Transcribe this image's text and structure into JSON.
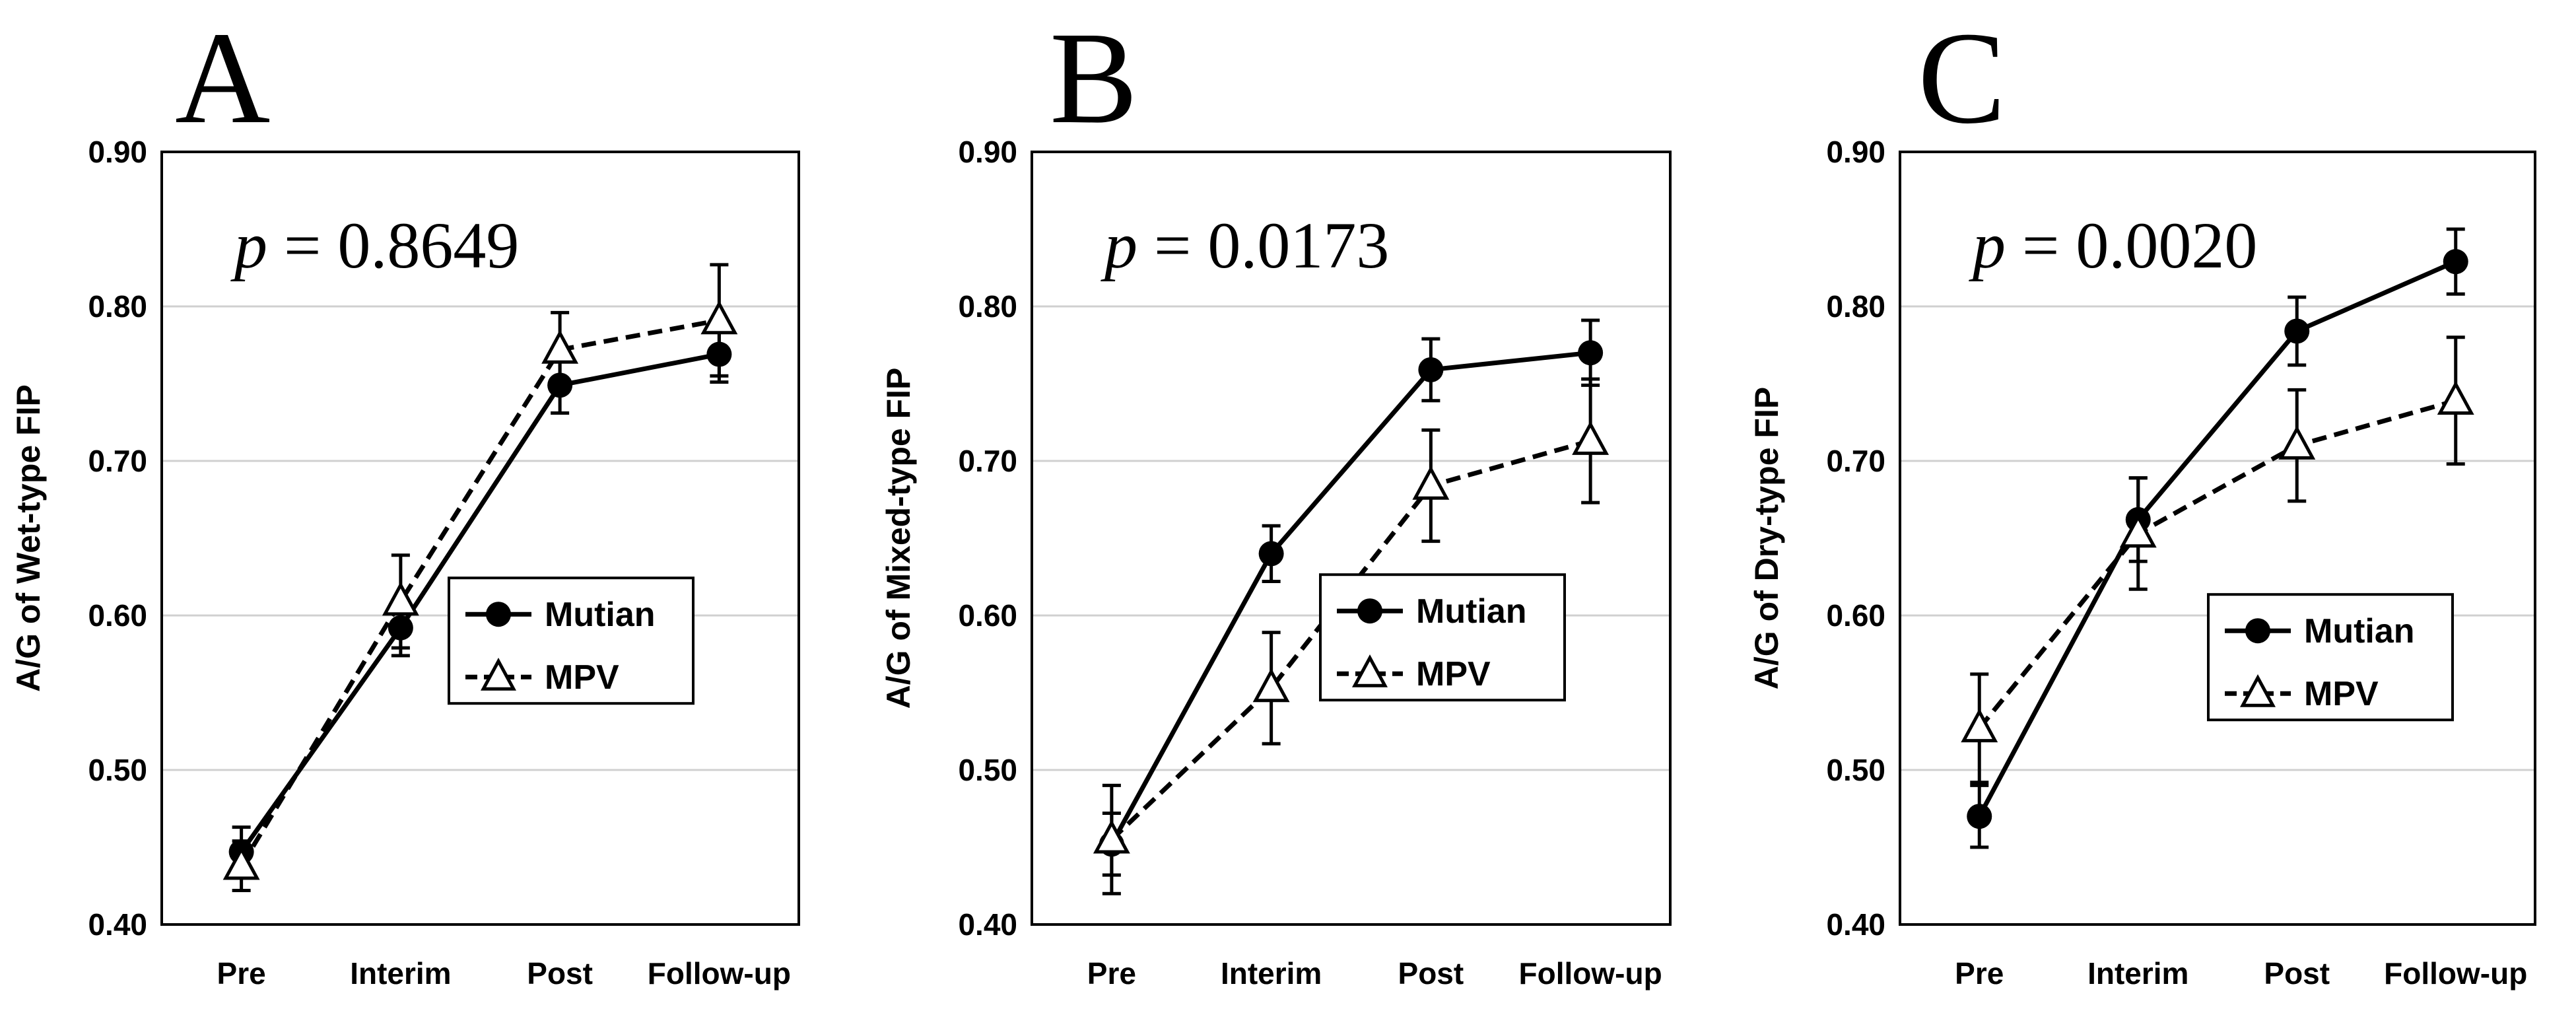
{
  "chart_data": [
    {
      "type": "line",
      "panel": "A",
      "annotation_symbol": "p",
      "annotation_value": "= 0.8649",
      "ylabel": "A/G of Wet-type FIP",
      "xlabel": "",
      "categories": [
        "Pre",
        "Interim",
        "Post",
        "Follow-up"
      ],
      "ylim": [
        0.4,
        0.9
      ],
      "yticks": [
        "0.40",
        "0.50",
        "0.60",
        "0.70",
        "0.80",
        "0.90"
      ],
      "grid": true,
      "legend_position": "bottom-right",
      "series": [
        {
          "name": "Mutian",
          "marker": "filled-circle",
          "line": "solid",
          "values": [
            0.447,
            0.592,
            0.749,
            0.769
          ],
          "errors": [
            0.016,
            0.018,
            0.018,
            0.018
          ]
        },
        {
          "name": "MPV",
          "marker": "open-triangle",
          "line": "dashed",
          "values": [
            0.438,
            0.609,
            0.772,
            0.791
          ],
          "errors": [
            0.016,
            0.03,
            0.024,
            0.036
          ]
        }
      ]
    },
    {
      "type": "line",
      "panel": "B",
      "annotation_symbol": "p",
      "annotation_value": "= 0.0173",
      "ylabel": "A/G of Mixed-type FIP",
      "xlabel": "",
      "categories": [
        "Pre",
        "Interim",
        "Post",
        "Follow-up"
      ],
      "ylim": [
        0.4,
        0.9
      ],
      "yticks": [
        "0.40",
        "0.50",
        "0.60",
        "0.70",
        "0.80",
        "0.90"
      ],
      "grid": true,
      "legend_position": "bottom-right",
      "series": [
        {
          "name": "Mutian",
          "marker": "filled-circle",
          "line": "solid",
          "values": [
            0.452,
            0.64,
            0.759,
            0.77
          ],
          "errors": [
            0.02,
            0.018,
            0.02,
            0.021
          ]
        },
        {
          "name": "MPV",
          "marker": "open-triangle",
          "line": "dashed",
          "values": [
            0.455,
            0.553,
            0.684,
            0.713
          ],
          "errors": [
            0.035,
            0.036,
            0.036,
            0.04
          ]
        }
      ]
    },
    {
      "type": "line",
      "panel": "C",
      "annotation_symbol": "p",
      "annotation_value": "= 0.0020",
      "ylabel": "A/G of Dry-type FIP",
      "xlabel": "",
      "categories": [
        "Pre",
        "Interim",
        "Post",
        "Follow-up"
      ],
      "ylim": [
        0.4,
        0.9
      ],
      "yticks": [
        "0.40",
        "0.50",
        "0.60",
        "0.70",
        "0.80",
        "0.90"
      ],
      "grid": true,
      "legend_position": "bottom-right",
      "series": [
        {
          "name": "Mutian",
          "marker": "filled-circle",
          "line": "solid",
          "values": [
            0.47,
            0.662,
            0.784,
            0.829
          ],
          "errors": [
            0.02,
            0.027,
            0.022,
            0.021
          ]
        },
        {
          "name": "MPV",
          "marker": "open-triangle",
          "line": "dashed",
          "values": [
            0.527,
            0.653,
            0.71,
            0.739
          ],
          "errors": [
            0.035,
            0.036,
            0.036,
            0.041
          ]
        }
      ]
    }
  ]
}
